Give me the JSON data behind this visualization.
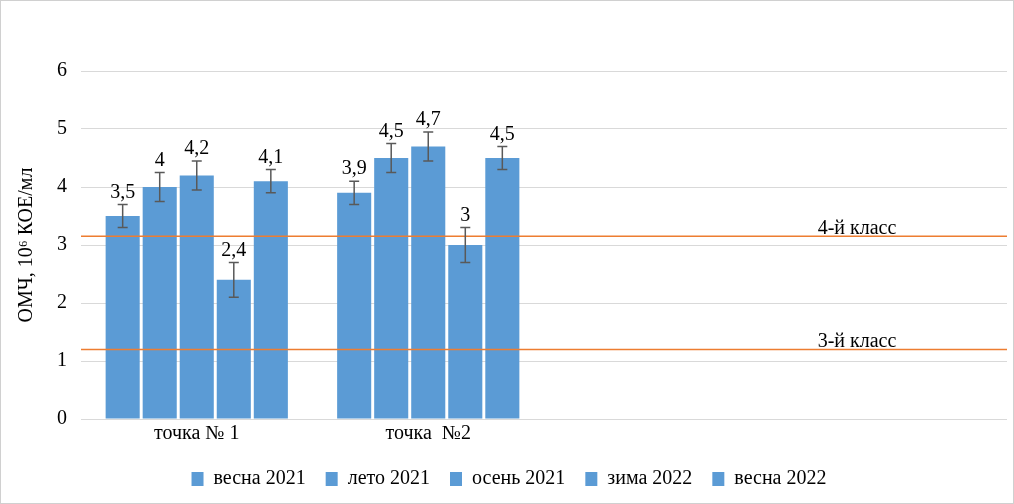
{
  "chart_data": {
    "type": "bar",
    "ylabel": "ОМЧ, 10⁶ КОЕ/мл",
    "categories": [
      "точка № 1",
      "точка  №2",
      null,
      null
    ],
    "series": [
      {
        "name": "весна 2021",
        "color": "#5b9bd5",
        "values": [
          3.5,
          3.9,
          null,
          null
        ],
        "errors": [
          0.2,
          0.2,
          null,
          null
        ],
        "value_labels": [
          "3,5",
          "3,9",
          null,
          null
        ]
      },
      {
        "name": "лето 2021",
        "color": "#5b9bd5",
        "values": [
          4,
          4.5,
          null,
          null
        ],
        "errors": [
          0.25,
          0.25,
          null,
          null
        ],
        "value_labels": [
          "4",
          "4,5",
          null,
          null
        ]
      },
      {
        "name": "осень 2021",
        "color": "#5b9bd5",
        "values": [
          4.2,
          4.7,
          null,
          null
        ],
        "errors": [
          0.25,
          0.25,
          null,
          null
        ],
        "value_labels": [
          "4,2",
          "4,7",
          null,
          null
        ]
      },
      {
        "name": "зима 2022",
        "color": "#5b9bd5",
        "values": [
          2.4,
          3,
          null,
          null
        ],
        "errors": [
          0.3,
          0.3,
          null,
          null
        ],
        "value_labels": [
          "2,4",
          "3",
          null,
          null
        ]
      },
      {
        "name": "весна 2022",
        "color": "#5b9bd5",
        "values": [
          4.1,
          4.5,
          null,
          null
        ],
        "errors": [
          0.2,
          0.2,
          null,
          null
        ],
        "value_labels": [
          "4,1",
          "4,5",
          null,
          null
        ]
      }
    ],
    "ylim": [
      0,
      6
    ],
    "yticks": [
      0,
      1,
      2,
      3,
      4,
      5,
      6
    ],
    "grid": "y",
    "legend": "bottom",
    "ref_lines": [
      {
        "axis": "y",
        "value": 3.15,
        "label": "4-й класс",
        "color": "#ed7d31"
      },
      {
        "axis": "y",
        "value": 1.2,
        "label": "3-й класс",
        "color": "#ed7d31"
      }
    ]
  }
}
